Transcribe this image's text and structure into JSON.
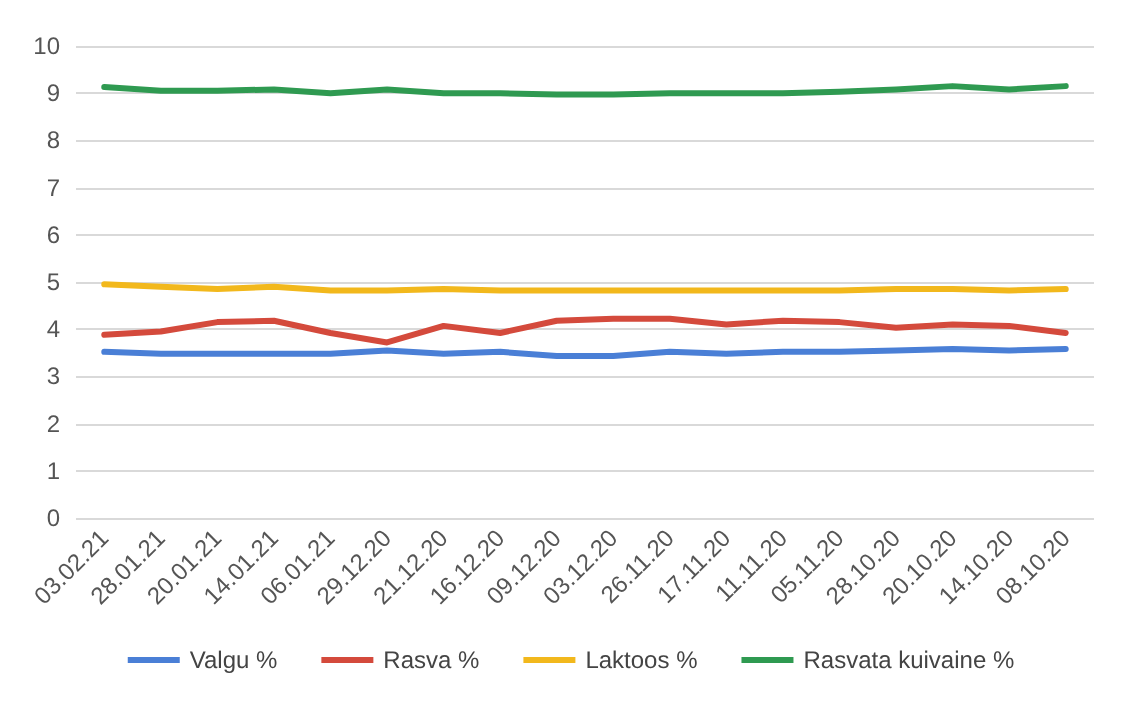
{
  "chart_data": {
    "type": "line",
    "categories": [
      "03.02.21",
      "28.01.21",
      "20.01.21",
      "14.01.21",
      "06.01.21",
      "29.12.20",
      "21.12.20",
      "16.12.20",
      "09.12.20",
      "03.12.20",
      "26.11.20",
      "17.11.20",
      "11.11.20",
      "05.11.20",
      "28.10.20",
      "20.10.20",
      "14.10.20",
      "08.10.20"
    ],
    "series": [
      {
        "name": "Valgu %",
        "color": "#4a7fd6",
        "values": [
          3.52,
          3.48,
          3.48,
          3.48,
          3.48,
          3.55,
          3.48,
          3.52,
          3.43,
          3.43,
          3.52,
          3.48,
          3.52,
          3.52,
          3.55,
          3.58,
          3.55,
          3.58
        ]
      },
      {
        "name": "Rasva %",
        "color": "#d44a3c",
        "values": [
          3.88,
          3.95,
          4.15,
          4.18,
          3.92,
          3.72,
          4.07,
          3.92,
          4.18,
          4.22,
          4.22,
          4.1,
          4.18,
          4.15,
          4.03,
          4.1,
          4.07,
          3.92
        ]
      },
      {
        "name": "Laktoos %",
        "color": "#f2b81c",
        "values": [
          4.95,
          4.9,
          4.85,
          4.9,
          4.82,
          4.82,
          4.85,
          4.82,
          4.82,
          4.82,
          4.82,
          4.82,
          4.82,
          4.82,
          4.85,
          4.85,
          4.82,
          4.85
        ]
      },
      {
        "name": "Rasvata kuivaine %",
        "color": "#2f9a51",
        "values": [
          9.13,
          9.05,
          9.05,
          9.08,
          9.0,
          9.08,
          9.0,
          9.0,
          8.97,
          8.97,
          9.0,
          9.0,
          9.0,
          9.03,
          9.08,
          9.15,
          9.08,
          9.15
        ]
      }
    ],
    "ylim": [
      0,
      10
    ],
    "yticks": [
      0,
      1,
      2,
      3,
      4,
      5,
      6,
      7,
      8,
      9,
      10
    ],
    "grid": "y",
    "legend": "bottom",
    "marker": "none",
    "line_style": "solid"
  }
}
